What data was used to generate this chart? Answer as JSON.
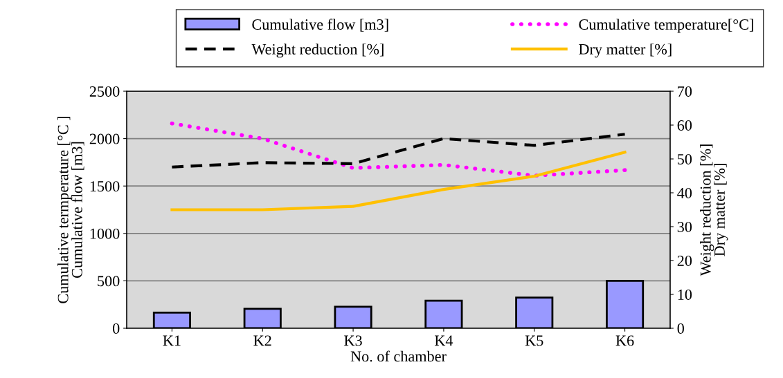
{
  "chart_data": {
    "type": "bar",
    "xlabel": "No. of chamber",
    "ylabel": "Cumulative termperature [°C ]\nCumulative flow [m3]",
    "y2label": "Weight reduction [%]\nDry matter [%]",
    "categories": [
      "K1",
      "K2",
      "K3",
      "K4",
      "K5",
      "K6"
    ],
    "series": [
      {
        "name": "Cumulative flow [m3]",
        "color": "#9999ff",
        "values": [
          165,
          205,
          227,
          291,
          324,
          500
        ]
      },
      {
        "name": "Cumulative temperature[°C]",
        "type": "line",
        "color": "#ff00ff",
        "line_style": "dotted",
        "values": [
          2160,
          2000,
          1690,
          1723,
          1609,
          1668
        ]
      },
      {
        "name": "Weight reduction [%]",
        "type": "line",
        "axis": "y2",
        "color": "#000000",
        "line_style": "dashed",
        "values": [
          47.6,
          48.9,
          48.6,
          56.0,
          54.0,
          57.3
        ]
      },
      {
        "name": "Dry matter [%]",
        "type": "line",
        "axis": "y2",
        "color": "#ffc000",
        "line_style": "solid",
        "values": [
          35,
          35,
          36,
          41,
          44.9,
          52
        ]
      }
    ],
    "ylim": [
      0,
      2500
    ],
    "yticks": [
      0,
      500,
      1000,
      1500,
      2000,
      2500
    ],
    "y2lim": [
      0,
      70
    ],
    "y2ticks": [
      0,
      10,
      20,
      30,
      40,
      50,
      60,
      70
    ],
    "grid": "y",
    "legend": "top"
  }
}
